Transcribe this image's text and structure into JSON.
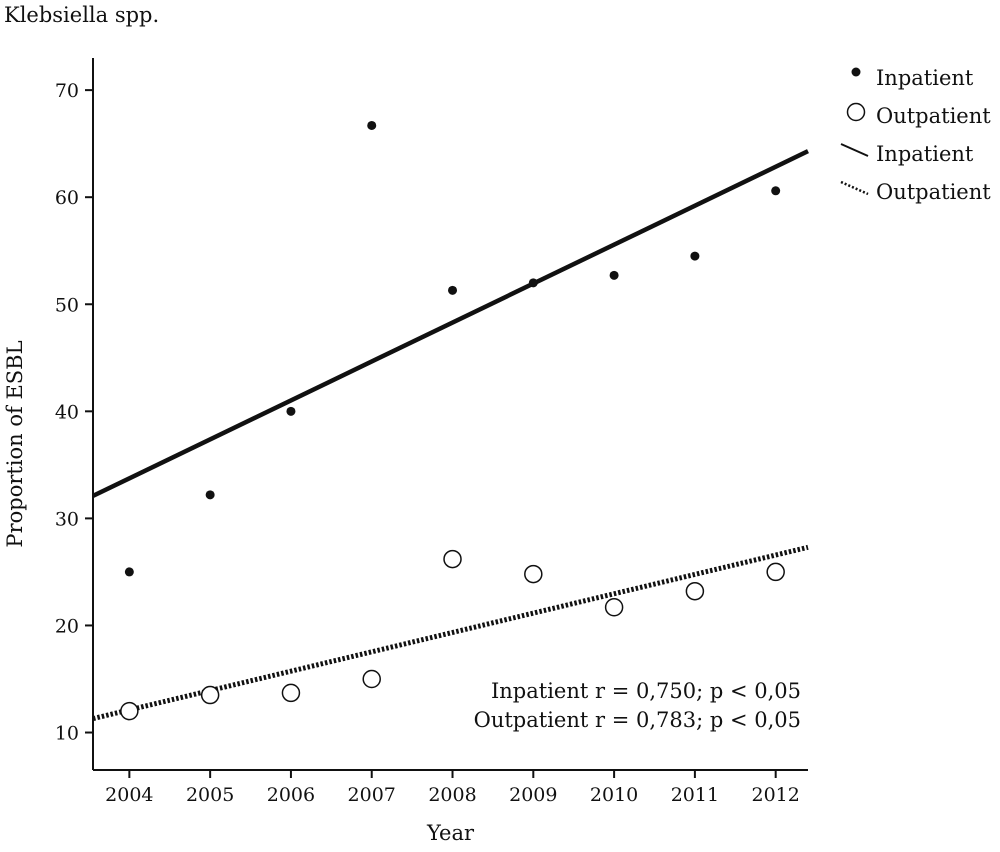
{
  "page_title": "Klebsiella spp.",
  "chart_data": {
    "type": "scatter",
    "x": [
      2004,
      2005,
      2006,
      2007,
      2008,
      2009,
      2010,
      2011,
      2012
    ],
    "xticks": [
      "2004",
      "2005",
      "2006",
      "2007",
      "2008",
      "2009",
      "2010",
      "2011",
      "2012"
    ],
    "xlim": [
      2003.55,
      2012.4
    ],
    "ylim": [
      6.5,
      73
    ],
    "yticks": [
      10,
      20,
      30,
      40,
      50,
      60,
      70
    ],
    "xlabel": "Year",
    "ylabel": "Proportion of ESBL",
    "grid": false,
    "legend_position": "top-right, outside plot",
    "series": [
      {
        "name": "Inpatient",
        "marker": "filled-dot",
        "values": [
          25.0,
          32.2,
          40.0,
          66.7,
          51.3,
          52.0,
          52.7,
          54.5,
          60.6
        ]
      },
      {
        "name": "Outpatient",
        "marker": "open-circle",
        "values": [
          12.0,
          13.5,
          13.7,
          15.0,
          26.2,
          24.8,
          21.7,
          23.2,
          25.0
        ]
      }
    ],
    "fit_lines": [
      {
        "name": "Inpatient",
        "style": "solid",
        "start": [
          2003.55,
          32.1
        ],
        "end": [
          2012.4,
          64.3
        ]
      },
      {
        "name": "Outpatient",
        "style": "dotted",
        "start": [
          2003.55,
          11.3
        ],
        "end": [
          2012.4,
          27.3
        ]
      }
    ],
    "legend": [
      {
        "label": "Inpatient",
        "kind": "filled-dot"
      },
      {
        "label": "Outpatient",
        "kind": "open-circle"
      },
      {
        "label": "Inpatient",
        "kind": "solid-line"
      },
      {
        "label": "Outpatient",
        "kind": "dotted-line"
      }
    ],
    "annotations": [
      "Inpatient r = 0,750; p < 0,05",
      "Outpatient r = 0,783; p < 0,05"
    ],
    "colors": {
      "ink": "#111111",
      "background": "#ffffff"
    }
  }
}
